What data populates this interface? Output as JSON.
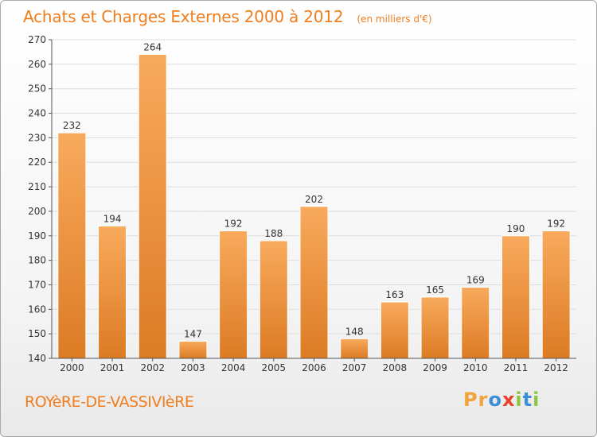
{
  "header": {
    "title": "Achats et Charges Externes 2000 à 2012",
    "subtitle": "(en milliers d'€)"
  },
  "footer": {
    "commune": "ROYèRE-DE-VASSIVIèRE",
    "logo_text": "Proxiti"
  },
  "colors": {
    "accent": "#f07d1e",
    "bar_light": "#f8aa5c",
    "bar_dark": "#dc7b24",
    "logo": [
      "#f2a33a",
      "#f2a33a",
      "#3a8fd6",
      "#e8442c",
      "#8cc63f",
      "#3a8fd6",
      "#8cc63f"
    ]
  },
  "chart_data": {
    "type": "bar",
    "title": "Achats et Charges Externes 2000 à 2012",
    "subtitle": "(en milliers d'€)",
    "xlabel": "",
    "ylabel": "",
    "categories": [
      "2000",
      "2001",
      "2002",
      "2003",
      "2004",
      "2005",
      "2006",
      "2007",
      "2008",
      "2009",
      "2010",
      "2011",
      "2012"
    ],
    "values": [
      232,
      194,
      264,
      147,
      192,
      188,
      202,
      148,
      163,
      165,
      169,
      190,
      192
    ],
    "ylim": [
      140,
      270
    ],
    "yticks": [
      140,
      150,
      160,
      170,
      180,
      190,
      200,
      210,
      220,
      230,
      240,
      250,
      260,
      270
    ],
    "grid": true,
    "legend": "none"
  }
}
